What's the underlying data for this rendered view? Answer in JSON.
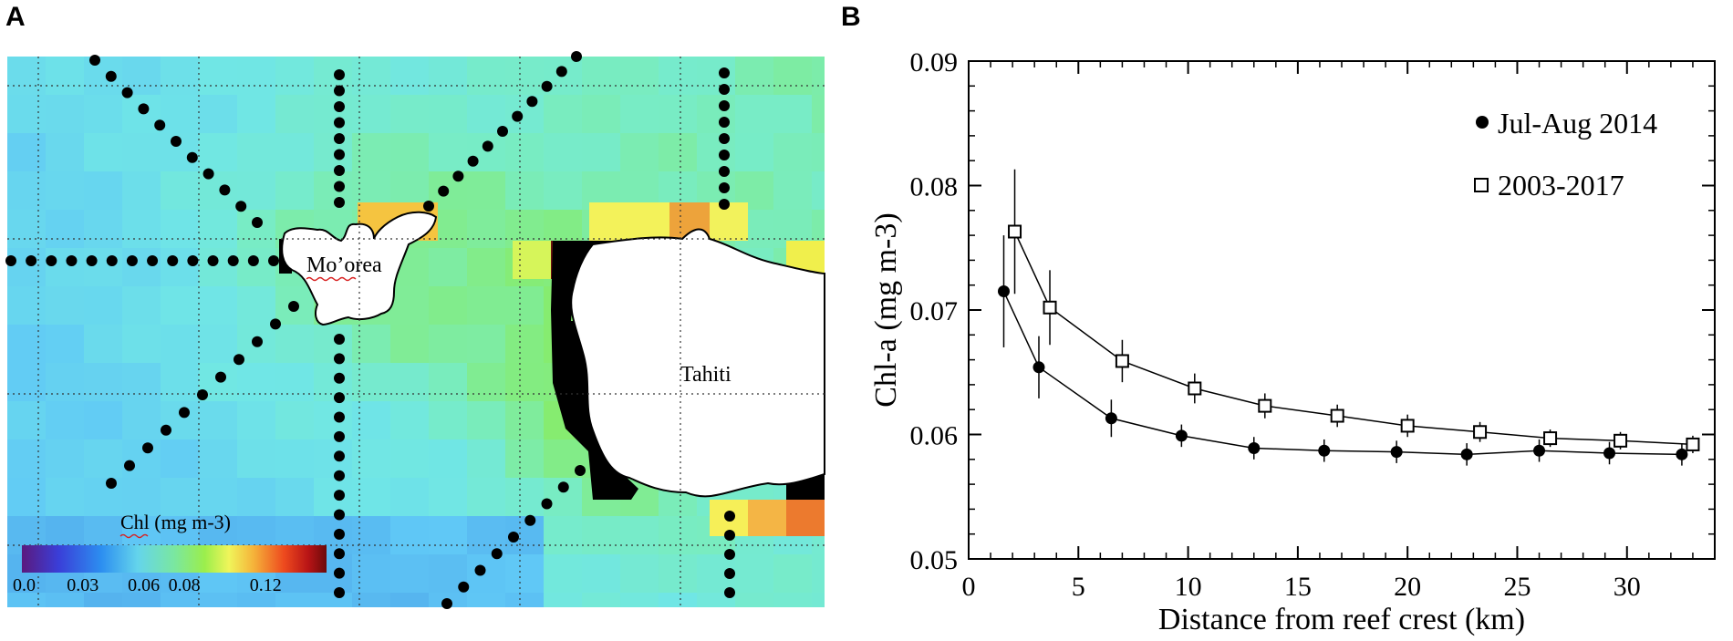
{
  "panels": {
    "a_letter": "A",
    "b_letter": "B"
  },
  "map": {
    "island_labels": {
      "moorea": "Mo’orea",
      "tahiti": "Tahiti"
    },
    "colorbar": {
      "title": "Chl (mg m-3)",
      "tick_labels": [
        "0.0",
        "0.03",
        "0.06",
        "0.08",
        "0.12"
      ],
      "tick_values": [
        0.0,
        0.03,
        0.06,
        0.08,
        0.12
      ],
      "range": [
        0.0,
        0.15
      ]
    }
  },
  "chart_data": {
    "type": "line",
    "title": "",
    "xlabel": "Distance from reef crest (km)",
    "ylabel": "Chl-a (mg m-3)",
    "xlim": [
      0,
      34
    ],
    "ylim": [
      0.05,
      0.09
    ],
    "xticks": [
      0,
      5,
      10,
      15,
      20,
      25,
      30
    ],
    "yticks": [
      0.05,
      0.06,
      0.07,
      0.08,
      0.09
    ],
    "xtick_labels": [
      "0",
      "5",
      "10",
      "15",
      "20",
      "25",
      "30"
    ],
    "ytick_labels": [
      "0.05",
      "0.06",
      "0.07",
      "0.08",
      "0.09"
    ],
    "legend_position": "top-right",
    "series": [
      {
        "name": "Jul-Aug 2014",
        "marker": "filled-circle",
        "x": [
          1.6,
          3.2,
          6.5,
          9.7,
          13.0,
          16.2,
          19.5,
          22.7,
          26.0,
          29.2,
          32.5
        ],
        "y": [
          0.0715,
          0.0654,
          0.0613,
          0.0599,
          0.0589,
          0.0587,
          0.0586,
          0.0584,
          0.0587,
          0.0585,
          0.0584
        ],
        "err": [
          0.0045,
          0.0025,
          0.0015,
          0.0009,
          0.0009,
          0.0009,
          0.0009,
          0.0009,
          0.0009,
          0.0009,
          0.0009
        ]
      },
      {
        "name": "2003-2017",
        "marker": "open-square",
        "x": [
          2.1,
          3.7,
          7.0,
          10.3,
          13.5,
          16.8,
          20.0,
          23.3,
          26.5,
          29.7,
          33.0
        ],
        "y": [
          0.0763,
          0.0702,
          0.0659,
          0.0637,
          0.0623,
          0.0615,
          0.0607,
          0.0602,
          0.0597,
          0.0595,
          0.0592
        ],
        "err": [
          0.005,
          0.003,
          0.0017,
          0.0012,
          0.001,
          0.0009,
          0.0009,
          0.0008,
          0.0007,
          0.0007,
          0.0007
        ]
      }
    ]
  }
}
